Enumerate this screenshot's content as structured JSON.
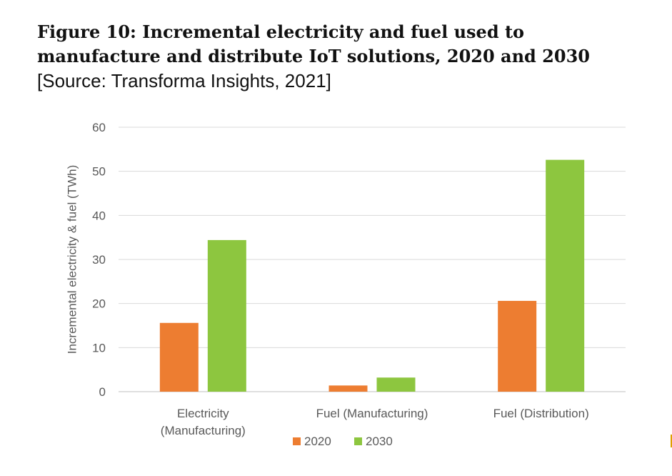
{
  "figure": {
    "title_line1": "Figure 10: Incremental electricity and fuel used to",
    "title_line2": "manufacture and distribute IoT solutions, 2020 and 2030",
    "source": "[Source: Transforma Insights, 2021]"
  },
  "chart_data": {
    "type": "bar",
    "categories": [
      [
        "Electricity",
        "(Manufacturing)"
      ],
      [
        "Fuel (Manufacturing)"
      ],
      [
        "Fuel (Distribution)"
      ]
    ],
    "series": [
      {
        "name": "2020",
        "color": "#ED7D31",
        "values": [
          15.6,
          1.4,
          20.6
        ]
      },
      {
        "name": "2030",
        "color": "#8DC63F",
        "values": [
          34.4,
          3.2,
          52.6
        ]
      }
    ],
    "ylabel": "Incremental electricity & fuel (TWh)",
    "xlabel": "",
    "ylim": [
      0,
      60
    ],
    "yticks": [
      "0",
      "10",
      "20",
      "30",
      "40",
      "50",
      "60"
    ],
    "grid": true,
    "legend": "bottom-center"
  }
}
